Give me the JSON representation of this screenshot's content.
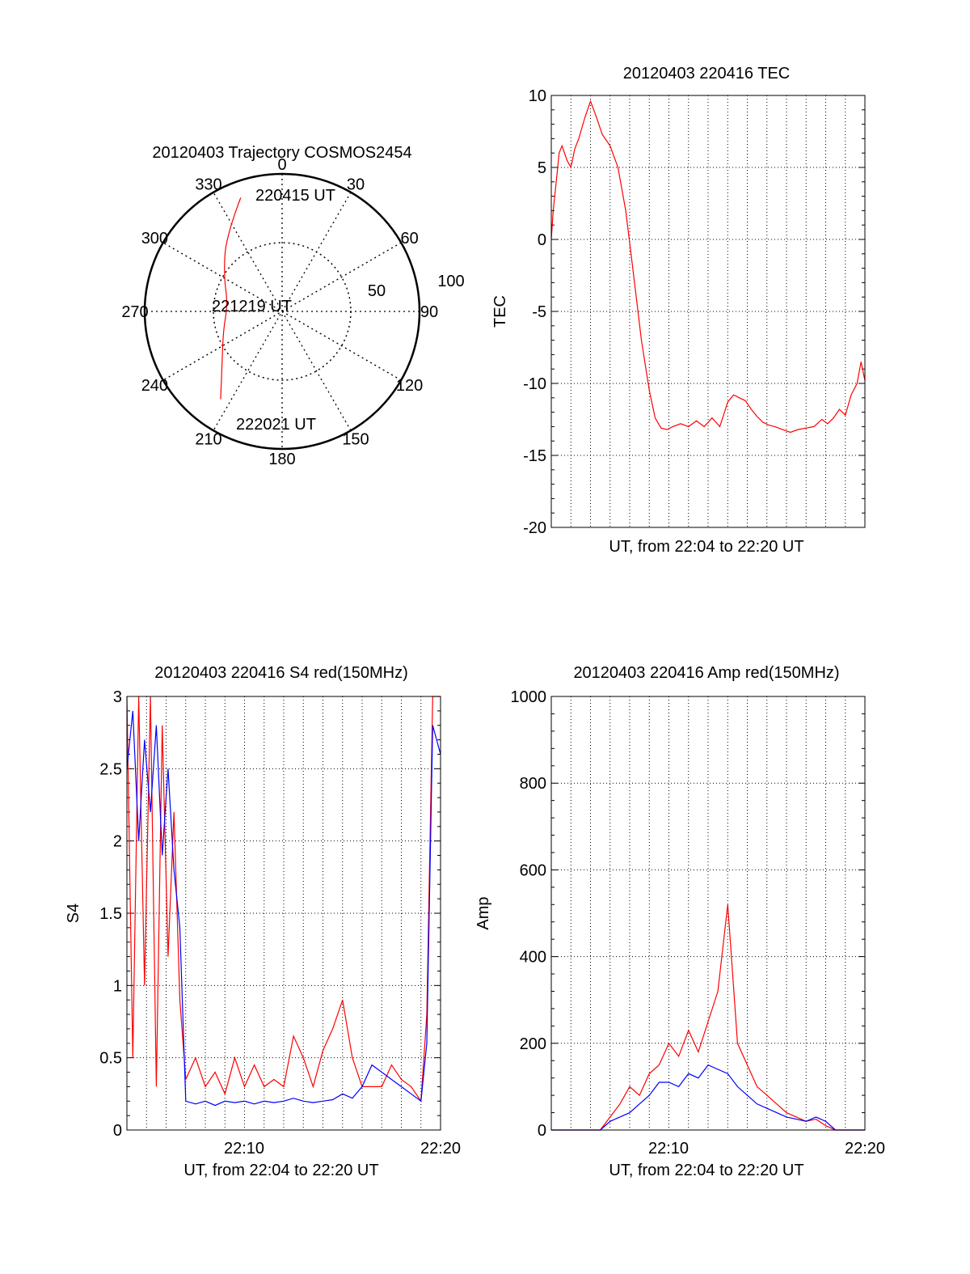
{
  "chart_data": [
    {
      "type": "polar",
      "title": "20120403 Trajectory COSMOS2454",
      "angle_labels": [
        "0",
        "30",
        "60",
        "90",
        "120",
        "150",
        "180",
        "210",
        "240",
        "270",
        "300",
        "330"
      ],
      "radius_labels": [
        "50",
        "100"
      ],
      "trajectory": {
        "color": "#ff0000",
        "start_label": "220415 UT",
        "mid_label": "221219 UT",
        "end_label": "222021 UT",
        "points": [
          {
            "az": 340,
            "r": 88
          },
          {
            "az": 323,
            "r": 68
          },
          {
            "az": 302,
            "r": 50
          },
          {
            "az": 278,
            "r": 40
          },
          {
            "az": 252,
            "r": 45
          },
          {
            "az": 230,
            "r": 57
          },
          {
            "az": 215,
            "r": 78
          }
        ]
      }
    },
    {
      "type": "line",
      "title": "20120403 220416 TEC",
      "xlabel": "UT, from 22:04 to 22:20 UT",
      "ylabel": "TEC",
      "ylim": [
        -20,
        10
      ],
      "yticks": [
        "10",
        "5",
        "0",
        "-5",
        "-10",
        "-15",
        "-20"
      ],
      "grid": true,
      "series": [
        {
          "color": "#ff0000",
          "x": [
            0,
            0.1,
            0.25,
            0.4,
            0.55,
            0.8,
            1.0,
            1.2,
            1.4,
            1.7,
            2.0,
            2.3,
            2.6,
            3.0,
            3.4,
            3.8,
            4.2,
            4.6,
            5.0,
            5.3,
            5.6,
            5.9,
            6.2,
            6.6,
            7.0,
            7.4,
            7.8,
            8.2,
            8.6,
            9.0,
            9.3,
            9.6,
            9.9,
            10.2,
            10.5,
            10.8,
            11.1,
            11.4,
            11.8,
            12.2,
            12.6,
            13.0,
            13.4,
            13.8,
            14.1,
            14.4,
            14.7,
            15.0,
            15.3,
            15.6,
            15.8,
            16.0
          ],
          "values": [
            0,
            2,
            4,
            6,
            6.5,
            5.5,
            5,
            6.3,
            7,
            8.4,
            9.6,
            8.5,
            7.3,
            6.5,
            5,
            2,
            -2.5,
            -7,
            -10.5,
            -12.4,
            -13.1,
            -13.2,
            -13,
            -12.8,
            -13,
            -12.6,
            -13,
            -12.4,
            -13,
            -11.3,
            -10.8,
            -11,
            -11.2,
            -11.8,
            -12.3,
            -12.7,
            -12.9,
            -13,
            -13.2,
            -13.4,
            -13.2,
            -13.1,
            -13,
            -12.5,
            -12.8,
            -12.4,
            -11.8,
            -12.2,
            -10.8,
            -10,
            -8.5,
            -9.8
          ]
        }
      ]
    },
    {
      "type": "line",
      "title": "20120403 220416 S4 red(150MHz)",
      "xlabel": "UT, from 22:04 to 22:20 UT",
      "ylabel": "S4",
      "ylim": [
        0,
        3
      ],
      "yticks": [
        "3",
        "2.5",
        "2",
        "1.5",
        "1",
        "0.5",
        "0"
      ],
      "xtick_labels": [
        "22:10",
        "22:20"
      ],
      "grid": true,
      "series": [
        {
          "color": "#ff0000",
          "x": [
            0.0,
            0.3,
            0.6,
            0.9,
            1.2,
            1.5,
            1.8,
            2.1,
            2.4,
            2.7,
            3.0,
            3.5,
            4.0,
            4.5,
            5.0,
            5.5,
            6.0,
            6.5,
            7.0,
            7.5,
            8.0,
            8.5,
            9.0,
            9.5,
            10.0,
            10.5,
            11.0,
            11.5,
            12.0,
            12.5,
            13.0,
            13.5,
            14.0,
            14.5,
            15.0,
            15.3,
            15.6,
            16.0
          ],
          "values": [
            3.0,
            0.5,
            3.0,
            1.0,
            3.0,
            0.3,
            2.8,
            1.2,
            2.2,
            0.9,
            0.35,
            0.5,
            0.3,
            0.4,
            0.25,
            0.5,
            0.3,
            0.45,
            0.3,
            0.35,
            0.3,
            0.65,
            0.5,
            0.3,
            0.55,
            0.7,
            0.9,
            0.5,
            0.3,
            0.3,
            0.3,
            0.45,
            0.35,
            0.3,
            0.2,
            0.8,
            3.0,
            3.0
          ]
        },
        {
          "color": "#0000ff",
          "x": [
            0.0,
            0.3,
            0.6,
            0.9,
            1.2,
            1.5,
            1.8,
            2.1,
            2.4,
            2.7,
            3.0,
            3.5,
            4.0,
            4.5,
            5.0,
            5.5,
            6.0,
            6.5,
            7.0,
            7.5,
            8.0,
            8.5,
            9.0,
            9.5,
            10.0,
            10.5,
            11.0,
            11.5,
            12.0,
            12.5,
            13.0,
            13.5,
            14.0,
            14.5,
            15.0,
            15.3,
            15.6,
            16.0
          ],
          "values": [
            2.5,
            2.9,
            2.0,
            2.7,
            2.2,
            2.8,
            1.9,
            2.5,
            1.8,
            1.4,
            0.2,
            0.18,
            0.2,
            0.17,
            0.2,
            0.19,
            0.2,
            0.18,
            0.2,
            0.19,
            0.2,
            0.22,
            0.2,
            0.19,
            0.2,
            0.21,
            0.25,
            0.22,
            0.3,
            0.45,
            0.4,
            0.35,
            0.3,
            0.25,
            0.2,
            0.6,
            2.8,
            2.6
          ]
        }
      ]
    },
    {
      "type": "line",
      "title": "20120403 220416 Amp red(150MHz)",
      "xlabel": "UT, from 22:04 to 22:20 UT",
      "ylabel": "Amp",
      "ylim": [
        0,
        1000
      ],
      "yticks": [
        "1000",
        "800",
        "600",
        "400",
        "200",
        "0"
      ],
      "xtick_labels": [
        "22:10",
        "22:20"
      ],
      "grid": true,
      "series": [
        {
          "color": "#ff0000",
          "x": [
            0,
            2.5,
            3.0,
            3.5,
            4.0,
            4.5,
            5.0,
            5.5,
            6.0,
            6.5,
            7.0,
            7.5,
            8.0,
            8.5,
            9.0,
            9.5,
            10.0,
            10.5,
            11.0,
            11.5,
            12.0,
            12.5,
            13.0,
            13.5,
            14.0,
            14.5,
            16.0
          ],
          "values": [
            0,
            0,
            30,
            60,
            100,
            80,
            130,
            150,
            200,
            170,
            230,
            180,
            250,
            320,
            520,
            200,
            150,
            100,
            80,
            60,
            40,
            30,
            20,
            25,
            10,
            0,
            0
          ]
        },
        {
          "color": "#0000ff",
          "x": [
            0,
            2.5,
            3.0,
            3.5,
            4.0,
            4.5,
            5.0,
            5.5,
            6.0,
            6.5,
            7.0,
            7.5,
            8.0,
            8.5,
            9.0,
            9.5,
            10.0,
            10.5,
            11.0,
            11.5,
            12.0,
            12.5,
            13.0,
            13.5,
            14.0,
            14.5,
            16.0
          ],
          "values": [
            0,
            0,
            20,
            30,
            40,
            60,
            80,
            110,
            110,
            100,
            130,
            120,
            150,
            140,
            130,
            100,
            80,
            60,
            50,
            40,
            30,
            25,
            20,
            30,
            20,
            0,
            0
          ]
        }
      ]
    }
  ]
}
